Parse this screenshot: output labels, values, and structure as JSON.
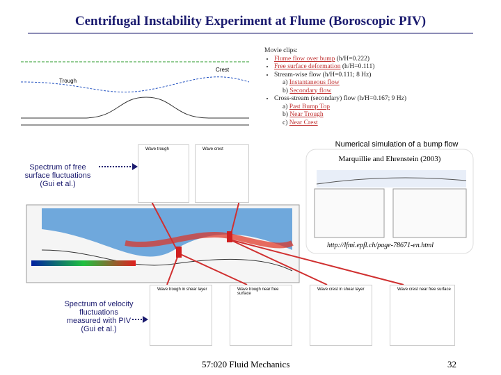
{
  "header": {
    "title": "Centrifugal Instability Experiment at Flume (Boroscopic PIV)"
  },
  "schematic": {
    "labels": [
      "Trough",
      "Crest"
    ]
  },
  "movie_clips": {
    "heading": "Movie clips:",
    "items": [
      {
        "link": "Flume flow over bump",
        "note": "(h/H=0.222)"
      },
      {
        "link": "Free surface deformation",
        "note": "(h/H=0.111)"
      },
      {
        "text": "Stream-wise flow (h/H=0.111; 8 Hz)",
        "sub": [
          {
            "marker": "a)",
            "link": "Instantaneous flow"
          },
          {
            "marker": "b)",
            "link": "Secondary flow"
          }
        ]
      },
      {
        "text": "Cross-stream (secondary) flow (h/H=0.167; 9 Hz)",
        "sub": [
          {
            "marker": "a)",
            "link": "Past Bump Top"
          },
          {
            "marker": "b)",
            "link": "Near Trough"
          },
          {
            "marker": "c)",
            "link": "Near Crest"
          }
        ]
      }
    ]
  },
  "simulation": {
    "caption": "Numerical simulation of a bump flow",
    "source": "Marquillie and Ehrenstein (2003)",
    "url": "http://lfmi.epfl.ch/page-78671-en.html"
  },
  "free_surface": {
    "label": "Spectrum of free surface fluctuations (Gui et al.)",
    "plots": [
      "Wave trough",
      "Wave crest"
    ]
  },
  "velocity": {
    "label": "Spectrum of velocity fluctuations measured with PIV (Gui et al.)",
    "plots": [
      "Wave trough in shear layer",
      "Wave trough near free surface",
      "Wave crest in shear layer",
      "Wave crest near free surface"
    ]
  },
  "footer": {
    "course": "57:020 Fluid Mechanics",
    "page": "32"
  }
}
